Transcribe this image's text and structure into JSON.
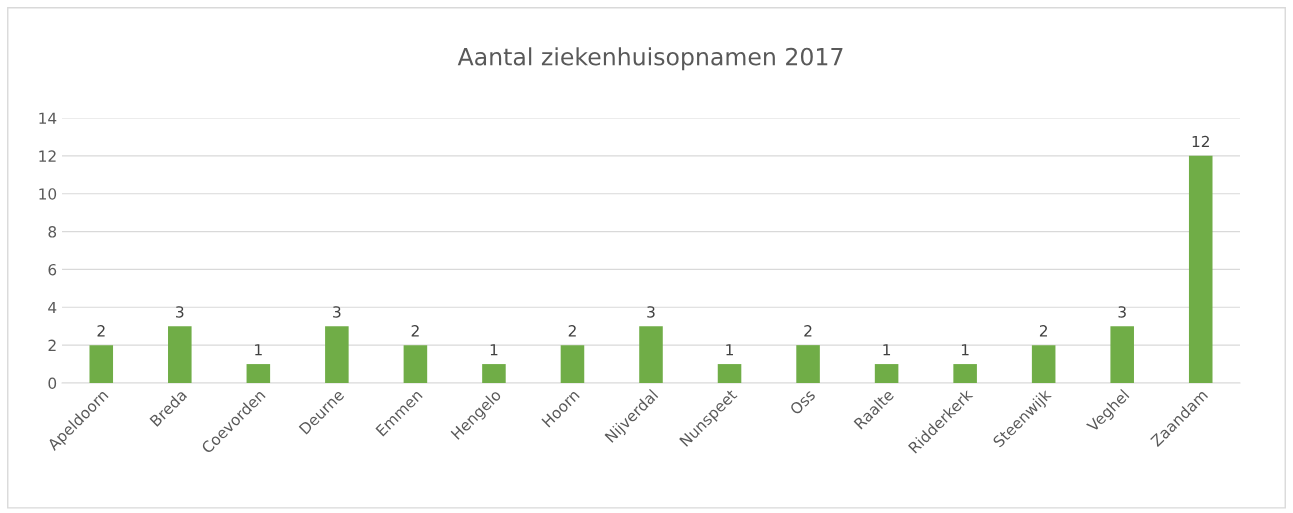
{
  "chart_data": {
    "type": "bar",
    "title": "Aantal ziekenhuisopnamen 2017",
    "categories": [
      "Apeldoorn",
      "Breda",
      "Coevorden",
      "Deurne",
      "Emmen",
      "Hengelo",
      "Hoorn",
      "Nijverdal",
      "Nunspeet",
      "Oss",
      "Raalte",
      "Ridderkerk",
      "Steenwijk",
      "Veghel",
      "Zaandam"
    ],
    "values": [
      2,
      3,
      1,
      3,
      2,
      1,
      2,
      3,
      1,
      2,
      1,
      1,
      2,
      3,
      12
    ],
    "color": "#70ad47",
    "ylim": [
      0,
      14
    ],
    "yticks": [
      0,
      2,
      4,
      6,
      8,
      10,
      12,
      14
    ],
    "grid": "y",
    "data_labels": true
  }
}
